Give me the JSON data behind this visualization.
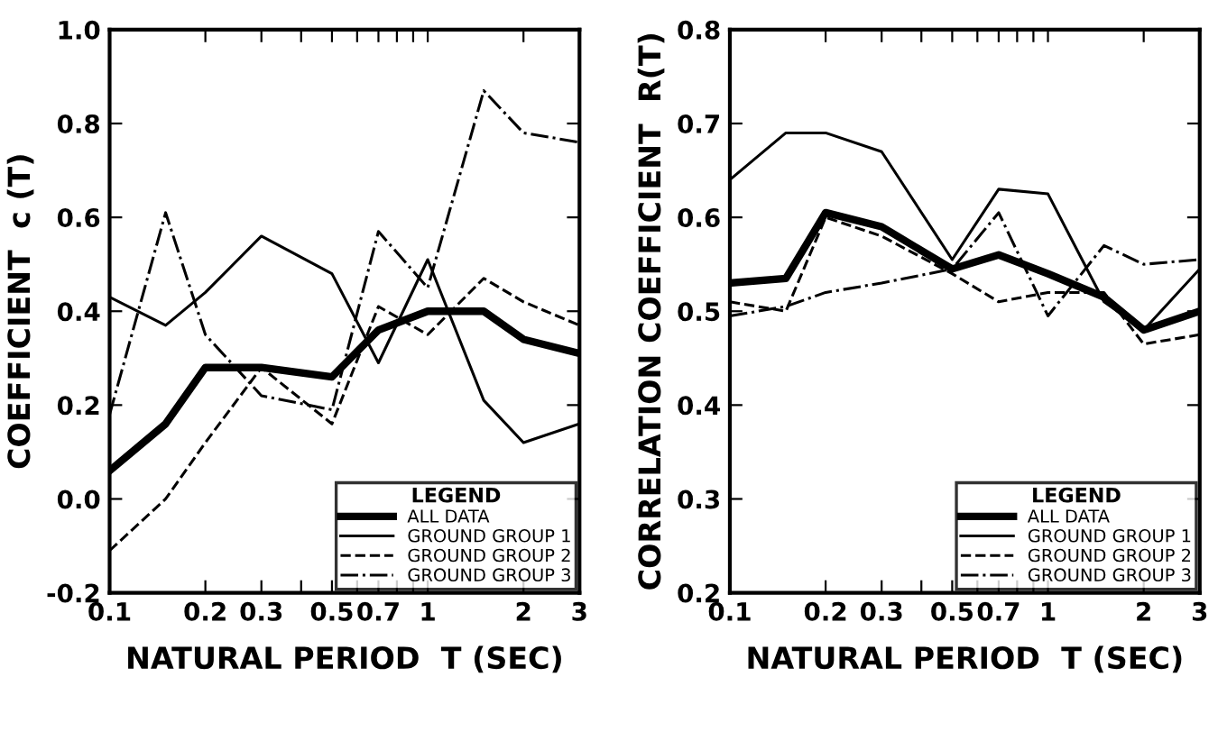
{
  "chart_data": [
    {
      "type": "line",
      "xlabel": "NATURAL PERIOD  T (SEC)",
      "ylabel": "COEFFICIENT  c (T)",
      "log": "x",
      "legend": "bottom right",
      "legend_title": "LEGEND",
      "grid": false,
      "x": [
        0.1,
        0.15,
        0.2,
        0.3,
        0.5,
        0.7,
        1,
        1.5,
        2,
        3
      ],
      "xlim": [
        0.1,
        3
      ],
      "ylim": [
        -0.2,
        1.0
      ],
      "xticks": [
        0.1,
        0.2,
        0.3,
        0.5,
        0.7,
        1,
        2,
        3,
        {
          "value": 0.4,
          "label": null
        },
        {
          "value": 0.6,
          "label": null
        },
        {
          "value": 0.8,
          "label": null
        },
        {
          "value": 0.9,
          "label": null
        }
      ],
      "yticks": [
        {
          "value": -0.2,
          "label": "-0.2"
        },
        {
          "value": 0.0,
          "label": "0.0"
        },
        0.2,
        0.4,
        0.6,
        0.8,
        {
          "value": 1.0,
          "label": "1.0"
        }
      ],
      "series": [
        {
          "name": "ALL DATA",
          "color": "#000000",
          "line_style": "solid",
          "values": [
            0.06,
            0.16,
            0.28,
            0.28,
            0.26,
            0.36,
            0.4,
            0.4,
            0.34,
            0.31
          ]
        },
        {
          "name": "GROUND GROUP 1",
          "color": "#000000",
          "line_style": "solid",
          "values": [
            0.43,
            0.37,
            0.44,
            0.56,
            0.48,
            0.29,
            0.51,
            0.21,
            0.12,
            0.16
          ]
        },
        {
          "name": "GROUND GROUP 2",
          "color": "#000000",
          "line_style": "dashed",
          "values": [
            -0.11,
            0.0,
            0.12,
            0.28,
            0.16,
            0.41,
            0.35,
            0.47,
            0.42,
            0.37
          ]
        },
        {
          "name": "GROUND GROUP 3",
          "color": "#000000",
          "line_style": "dashdot",
          "values": [
            0.18,
            0.61,
            0.35,
            0.22,
            0.19,
            0.57,
            0.45,
            0.87,
            0.78,
            0.76
          ]
        }
      ]
    },
    {
      "type": "line",
      "xlabel": "NATURAL PERIOD  T (SEC)",
      "ylabel": "CORRELATION COEFFICIENT  R(T)",
      "log": "x",
      "legend": "bottom right",
      "legend_title": "LEGEND",
      "grid": false,
      "x": [
        0.1,
        0.15,
        0.2,
        0.3,
        0.5,
        0.7,
        1,
        1.5,
        2,
        3
      ],
      "xlim": [
        0.1,
        3
      ],
      "ylim": [
        0.2,
        0.8
      ],
      "xticks": [
        0.1,
        0.2,
        0.3,
        0.5,
        0.7,
        1,
        2,
        3,
        {
          "value": 0.4,
          "label": null
        },
        {
          "value": 0.6,
          "label": null
        },
        {
          "value": 0.8,
          "label": null
        },
        {
          "value": 0.9,
          "label": null
        }
      ],
      "yticks": [
        0.2,
        0.3,
        0.4,
        0.5,
        0.6,
        0.7,
        0.8
      ],
      "series": [
        {
          "name": "ALL DATA",
          "color": "#000000",
          "line_style": "solid",
          "values": [
            0.53,
            0.535,
            0.605,
            0.59,
            0.545,
            0.56,
            0.54,
            0.515,
            0.48,
            0.5
          ]
        },
        {
          "name": "GROUND GROUP 1",
          "color": "#000000",
          "line_style": "solid",
          "values": [
            0.64,
            0.69,
            0.69,
            0.67,
            0.555,
            0.63,
            0.625,
            0.51,
            0.48,
            0.545
          ]
        },
        {
          "name": "GROUND GROUP 2",
          "color": "#000000",
          "line_style": "dashed",
          "values": [
            0.51,
            0.5,
            0.6,
            0.58,
            0.54,
            0.51,
            0.52,
            0.52,
            0.465,
            0.475
          ]
        },
        {
          "name": "GROUND GROUP 3",
          "color": "#000000",
          "line_style": "dashdot",
          "values": [
            0.495,
            0.505,
            0.52,
            0.53,
            0.545,
            0.605,
            0.495,
            0.57,
            0.55,
            0.555
          ]
        }
      ]
    }
  ]
}
